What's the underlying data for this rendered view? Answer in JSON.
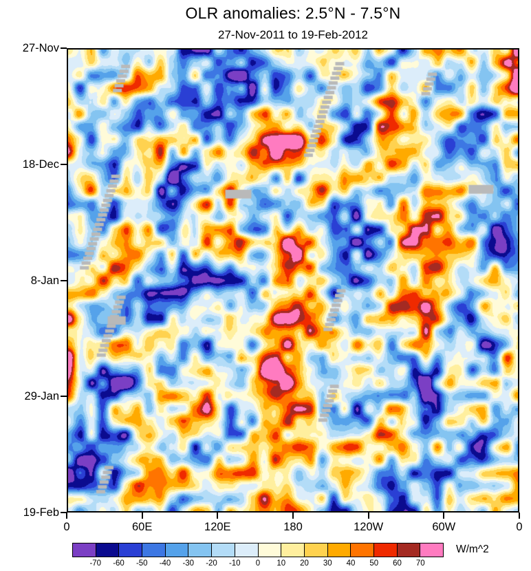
{
  "chart_data": {
    "type": "heatmap",
    "title": "OLR anomalies: 2.5°N - 7.5°N",
    "subtitle": "27-Nov-2011 to 19-Feb-2012",
    "x_axis": {
      "labels": [
        {
          "text": "0",
          "pos": 0
        },
        {
          "text": "60E",
          "pos": 0.1667
        },
        {
          "text": "120E",
          "pos": 0.3333
        },
        {
          "text": "180",
          "pos": 0.5
        },
        {
          "text": "120W",
          "pos": 0.6667
        },
        {
          "text": "60W",
          "pos": 0.8333
        },
        {
          "text": "0",
          "pos": 1
        }
      ]
    },
    "y_axis": {
      "labels": [
        {
          "text": "27-Nov",
          "pos": 0
        },
        {
          "text": "18-Dec",
          "pos": 0.25
        },
        {
          "text": "8-Jan",
          "pos": 0.5
        },
        {
          "text": "29-Jan",
          "pos": 0.75
        },
        {
          "text": "19-Feb",
          "pos": 1
        }
      ]
    },
    "colorbar": {
      "unit": "W/m^2",
      "levels": [
        -70,
        -60,
        -50,
        -40,
        -30,
        -20,
        -10,
        0,
        10,
        20,
        30,
        40,
        50,
        60,
        70
      ],
      "colors": [
        "#7b3fc4",
        "#0b0b8f",
        "#2a3fd4",
        "#3d77e3",
        "#55a2ea",
        "#84c4f1",
        "#b3dcf7",
        "#dcedfa",
        "#fffbd9",
        "#ffef9e",
        "#ffd24f",
        "#ffaa00",
        "#ff7400",
        "#ef2a00",
        "#a42a22",
        "#ff7bc0"
      ],
      "missing_color": "#b9b9b9"
    },
    "coarse_anomaly_grid": {
      "lon_nodes_deg": [
        0,
        45,
        90,
        135,
        180,
        225,
        270,
        315,
        360
      ],
      "time_nodes_day": [
        0,
        14,
        28,
        42,
        56,
        70,
        84
      ],
      "values_wm2": [
        [
          35,
          -15,
          -35,
          -20,
          15,
          25,
          10,
          25,
          35
        ],
        [
          20,
          5,
          -45,
          -30,
          35,
          -10,
          15,
          -10,
          20
        ],
        [
          -10,
          25,
          -40,
          45,
          20,
          -20,
          15,
          10,
          -10
        ],
        [
          -25,
          20,
          -25,
          -15,
          55,
          -15,
          20,
          -20,
          -25
        ],
        [
          15,
          -25,
          -30,
          25,
          45,
          -25,
          -15,
          -30,
          15
        ],
        [
          -20,
          -30,
          25,
          -15,
          35,
          15,
          -35,
          -30,
          -20
        ],
        [
          -15,
          20,
          -25,
          30,
          25,
          -20,
          -35,
          -25,
          -15
        ]
      ]
    },
    "missing_data_stairs": [
      {
        "x": 0.118,
        "y": 0.033,
        "steps": 6
      },
      {
        "x": 0.594,
        "y": 0.027,
        "steps": 20
      },
      {
        "x": 0.8,
        "y": 0.05,
        "steps": 5
      },
      {
        "x": 0.096,
        "y": 0.271,
        "steps": 20
      },
      {
        "x": 0.108,
        "y": 0.533,
        "steps": 13
      },
      {
        "x": 0.597,
        "y": 0.519,
        "steps": 9
      },
      {
        "x": 0.582,
        "y": 0.726,
        "steps": 8
      },
      {
        "x": 0.081,
        "y": 0.902,
        "steps": 6
      }
    ],
    "missing_data_dashes": [
      {
        "x": 0.3495,
        "y": 0.3037,
        "w": 0.058,
        "h": 0.019
      },
      {
        "x": 0.8906,
        "y": 0.2933,
        "w": 0.055,
        "h": 0.019
      },
      {
        "x": 0.088,
        "y": 0.578,
        "w": 0.04,
        "h": 0.018
      }
    ]
  }
}
